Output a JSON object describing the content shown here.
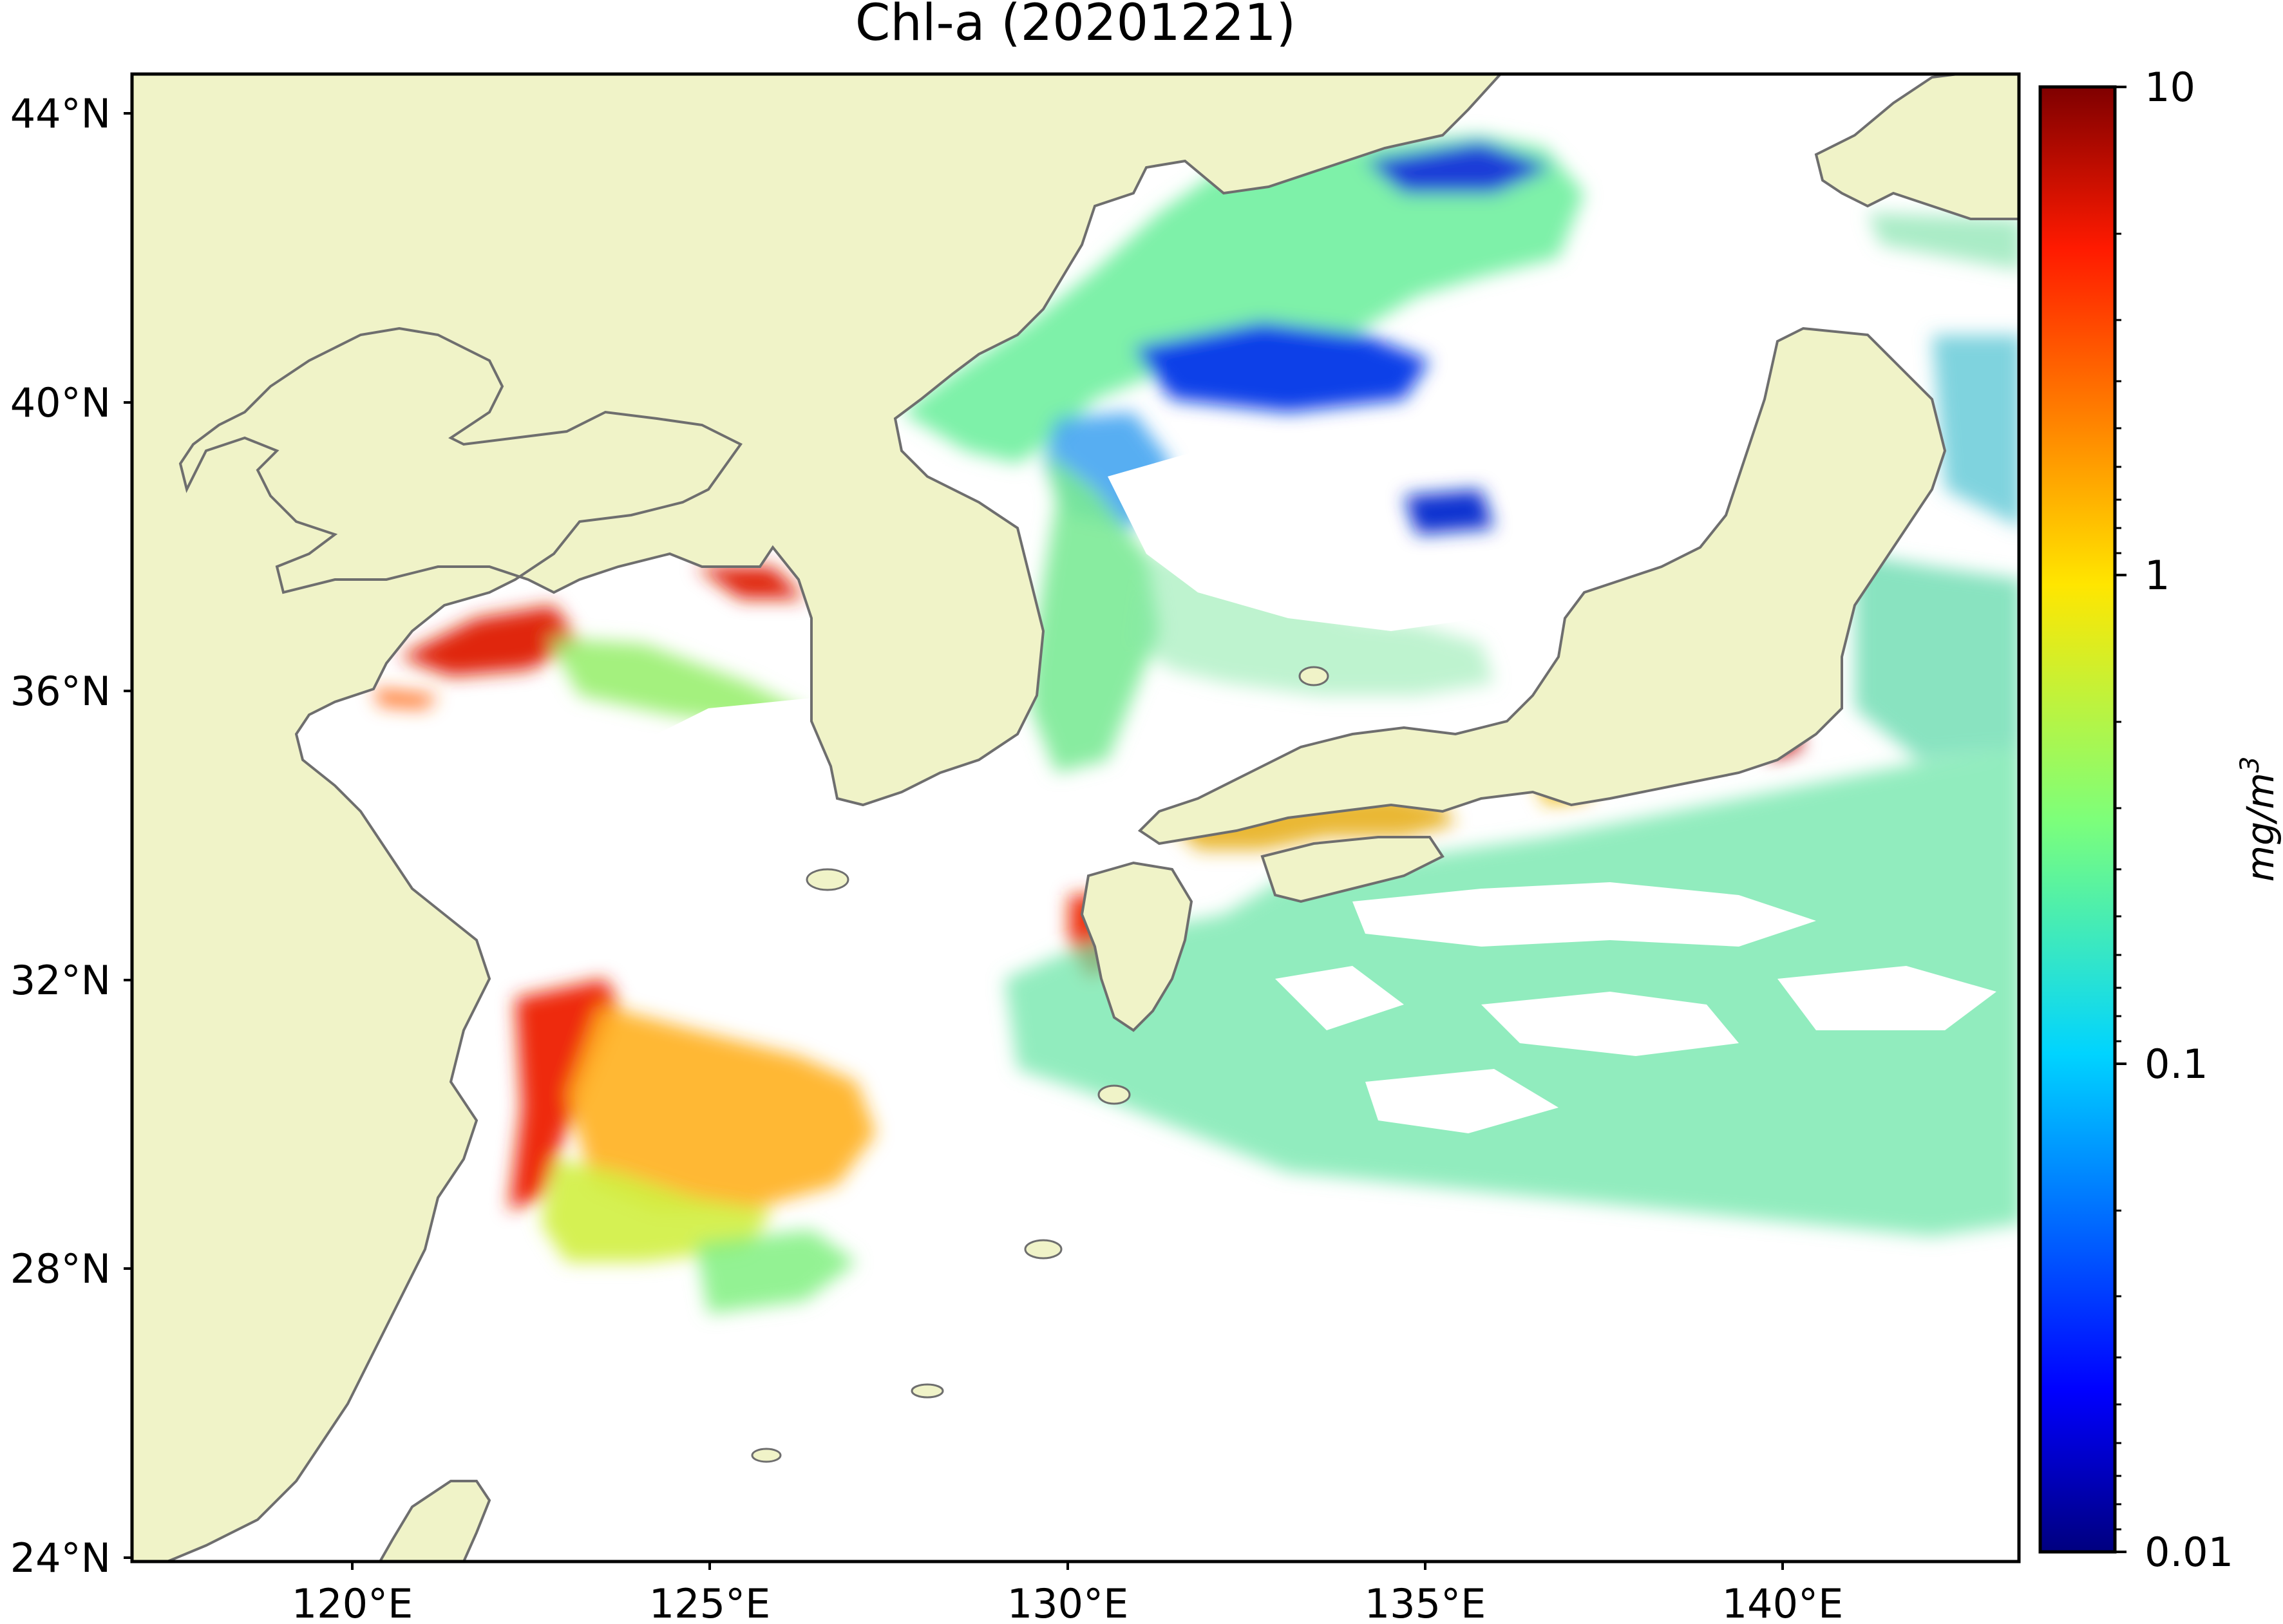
{
  "title": "Chl-a (20201221)",
  "lat_labels": [
    "44°N",
    "40°N",
    "36°N",
    "32°N",
    "28°N",
    "24°N"
  ],
  "lon_labels": [
    "120°E",
    "125°E",
    "130°E",
    "135°E",
    "140°E"
  ],
  "colorbar": {
    "label_base": "mg/m",
    "label_exp": "3",
    "tick_labels": [
      "10",
      "1",
      "0.1",
      "0.01"
    ],
    "scale": "log",
    "range": [
      0.01,
      10
    ],
    "colormap": "jet"
  },
  "colors": {
    "land": "#f0f3c8",
    "coastline": "#6e6e6e",
    "ocean_no_data": "#ffffff"
  }
}
